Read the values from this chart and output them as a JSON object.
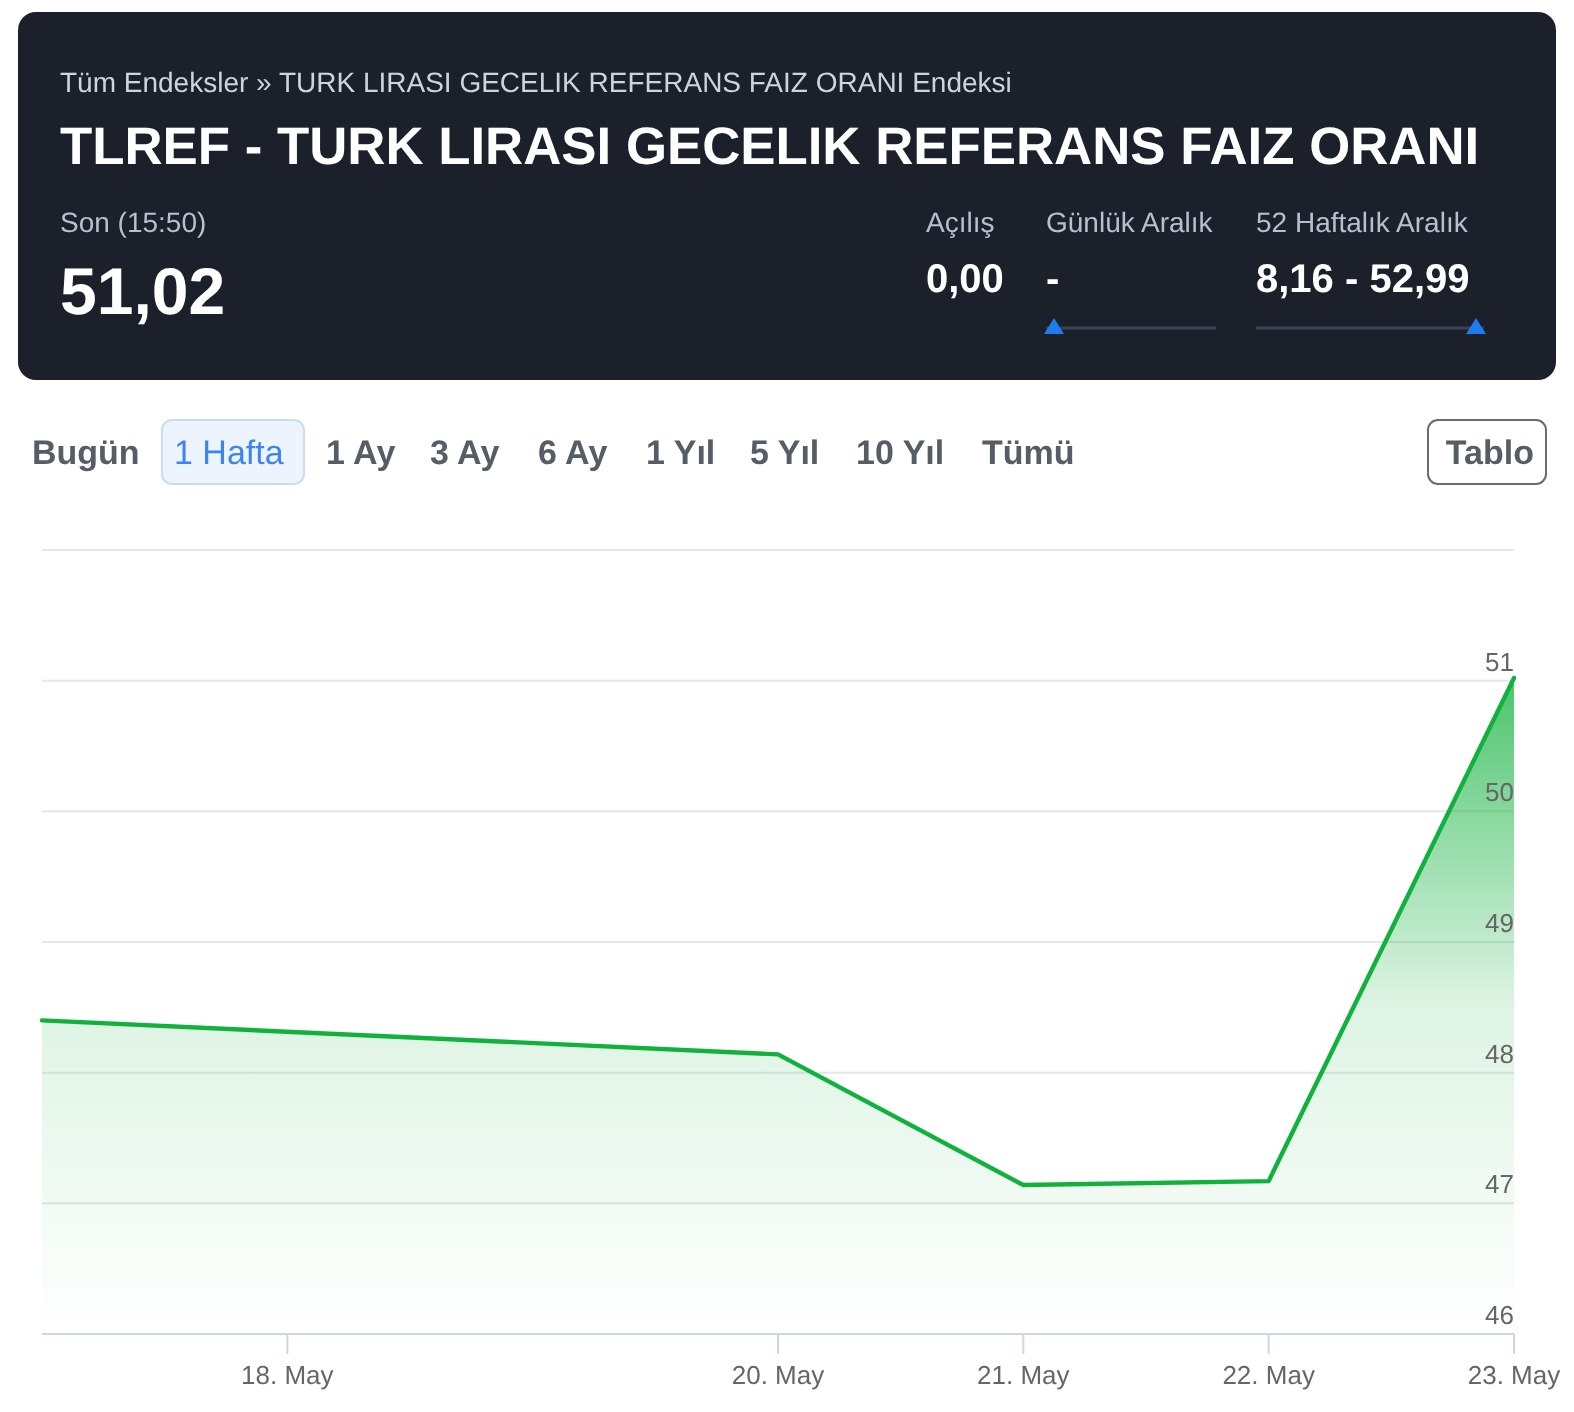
{
  "chart_data": {
    "type": "area",
    "title": "TLREF - TURK LIRASI GECELIK REFERANS FAIZ ORANI",
    "subtitle": "Tüm Endeksler » TURK LIRASI GECELIK REFERANS FAIZ ORANI Endeksi",
    "annotations": [
      "Son (15:50)",
      "51,02",
      "Açılış",
      "0,00",
      "Günlük Aralık",
      "-",
      "52 Haftalık Aralık",
      "8,16 - 52,99",
      "Bugün",
      "1 Hafta",
      "1 Ay",
      "3 Ay",
      "6 Ay",
      "1 Yıl",
      "5 Yıl",
      "10 Yıl",
      "Tümü",
      "Tablo"
    ],
    "x": [
      "--05-17",
      "--05-20",
      "--05-21",
      "--05-22",
      "--05-23"
    ],
    "xlim": [
      "--05-17",
      "--05-23"
    ],
    "xticks": [
      {
        "value": "--05-18",
        "label": "18. May"
      },
      {
        "value": "--05-20",
        "label": "20. May"
      },
      {
        "value": "--05-21",
        "label": "21. May"
      },
      {
        "value": "--05-22",
        "label": "22. May"
      },
      {
        "value": "--05-23",
        "label": "23. May"
      }
    ],
    "ylim": [
      46,
      52
    ],
    "yticks": [
      46,
      47,
      48,
      49,
      50,
      51,
      {
        "value": 52,
        "label": null
      }
    ],
    "grid": "y",
    "series": [
      {
        "color": "#10b13c",
        "values": [
          48.4,
          48.14,
          47.14,
          47.17,
          51.02
        ]
      }
    ]
  }
}
